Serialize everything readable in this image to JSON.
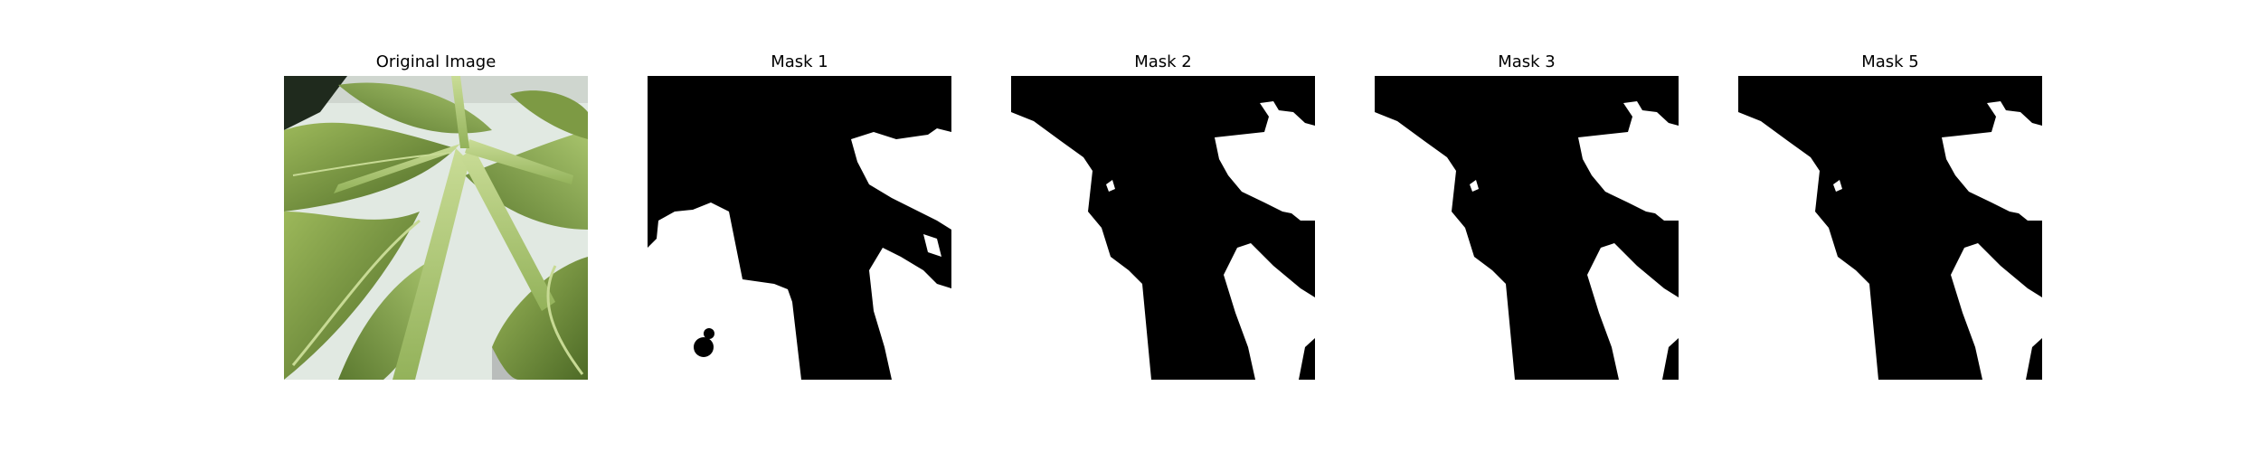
{
  "panels": [
    {
      "title": "Original Image",
      "kind": "photo"
    },
    {
      "title": "Mask 1",
      "kind": "mask"
    },
    {
      "title": "Mask 2",
      "kind": "mask"
    },
    {
      "title": "Mask 3",
      "kind": "mask"
    },
    {
      "title": "Mask 5",
      "kind": "mask"
    }
  ],
  "colors": {
    "background": "#ffffff",
    "mask_foreground": "#ffffff",
    "mask_background": "#000000",
    "leaf_dark": "#4f6b2a",
    "leaf_light": "#a9c46a",
    "backdrop": "#e3ebe4"
  }
}
